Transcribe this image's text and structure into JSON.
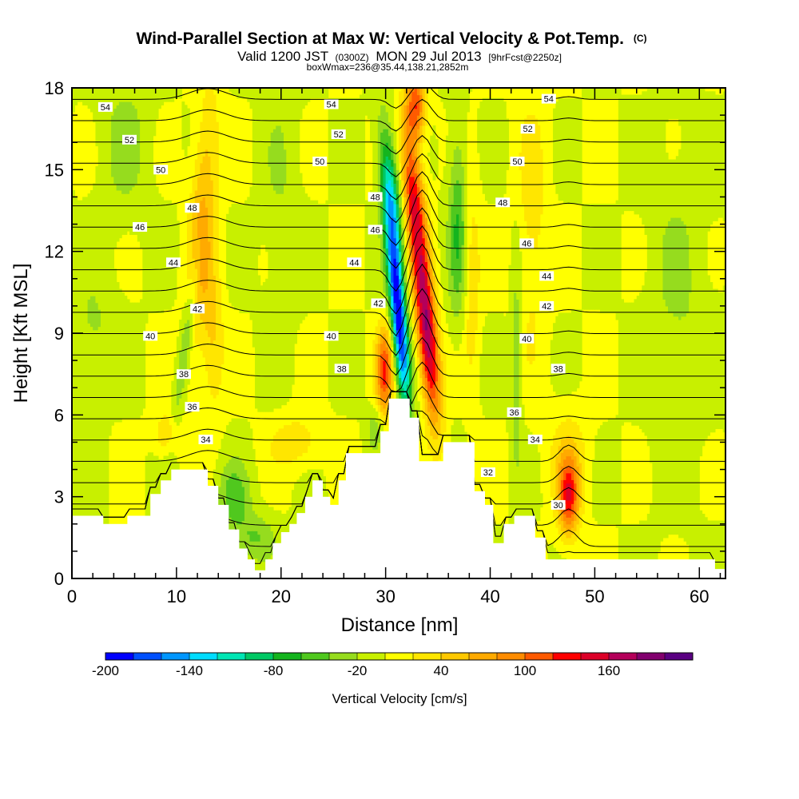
{
  "title": {
    "main": "Wind-Parallel Section at Max W: Vertical Velocity & Pot.Temp.",
    "mark": "(C)",
    "line2a": "Valid 1200 JST",
    "line2b": "(0300Z)",
    "line2c": "MON 29 Jul 2013",
    "line2d": "[9hrFcst@2250z]",
    "line3": "boxWmax=236@35.44,138.21,2852m"
  },
  "chart_data": {
    "type": "heatmap",
    "xlabel": "Distance [nm]",
    "ylabel": "Height [Kft MSL]",
    "xlim": [
      0,
      62.5
    ],
    "ylim": [
      0,
      18
    ],
    "x_ticks": [
      0,
      10,
      20,
      30,
      40,
      50,
      60
    ],
    "y_ticks": [
      0,
      3,
      6,
      9,
      12,
      15,
      18
    ],
    "colorbar": {
      "label": "Vertical Velocity [cm/s]",
      "tick_values": [
        -200,
        -140,
        -80,
        -20,
        40,
        100,
        160
      ],
      "levels": [
        -200,
        -180,
        -160,
        -140,
        -120,
        -100,
        -80,
        -60,
        -40,
        -20,
        0,
        20,
        40,
        60,
        80,
        100,
        120,
        140,
        160,
        180,
        200
      ],
      "colors": [
        "#0000ff",
        "#0050ff",
        "#0096ff",
        "#00dcff",
        "#00e6b4",
        "#00c864",
        "#14b41e",
        "#50c81e",
        "#96dc1e",
        "#c8f000",
        "#ffff00",
        "#ffe600",
        "#ffc800",
        "#ffaa00",
        "#ff8c00",
        "#ff5a00",
        "#ff0000",
        "#dc0028",
        "#b4005a",
        "#82006e",
        "#5a0082"
      ]
    },
    "terrain": [
      [
        0,
        2.3
      ],
      [
        3,
        2.3
      ],
      [
        3,
        2.0
      ],
      [
        5.3,
        2.0
      ],
      [
        5.3,
        2.3
      ],
      [
        7.5,
        2.3
      ],
      [
        7.5,
        2.6
      ],
      [
        7.5,
        3.1
      ],
      [
        8.5,
        3.1
      ],
      [
        8.5,
        3.6
      ],
      [
        9.5,
        3.6
      ],
      [
        9.5,
        4.0
      ],
      [
        13,
        4.0
      ],
      [
        13,
        3.4
      ],
      [
        14,
        3.4
      ],
      [
        14,
        2.7
      ],
      [
        15,
        2.7
      ],
      [
        15,
        1.8
      ],
      [
        16,
        1.8
      ],
      [
        16,
        1.1
      ],
      [
        16.8,
        1.1
      ],
      [
        16.8,
        0.7
      ],
      [
        17.5,
        0.7
      ],
      [
        17.5,
        0.3
      ],
      [
        18.5,
        0.3
      ],
      [
        18.5,
        0.7
      ],
      [
        19.2,
        0.7
      ],
      [
        19.2,
        1.3
      ],
      [
        20,
        1.3
      ],
      [
        20,
        1.7
      ],
      [
        20.8,
        1.7
      ],
      [
        20.8,
        2.0
      ],
      [
        21.5,
        2.0
      ],
      [
        21.5,
        2.4
      ],
      [
        22.3,
        2.4
      ],
      [
        22.3,
        3.0
      ],
      [
        23,
        3.0
      ],
      [
        23,
        3.6
      ],
      [
        24,
        3.6
      ],
      [
        24,
        3.0
      ],
      [
        24.7,
        3.0
      ],
      [
        24.7,
        2.7
      ],
      [
        25.5,
        2.7
      ],
      [
        25.5,
        3.6
      ],
      [
        26.2,
        3.6
      ],
      [
        26.2,
        4.6
      ],
      [
        29.5,
        4.6
      ],
      [
        29.5,
        5.4
      ],
      [
        30.3,
        5.4
      ],
      [
        30.3,
        6.6
      ],
      [
        32.3,
        6.6
      ],
      [
        32.3,
        5.9
      ],
      [
        33.2,
        5.9
      ],
      [
        33.2,
        4.3
      ],
      [
        35.5,
        4.3
      ],
      [
        35.5,
        5.0
      ],
      [
        38.5,
        5.0
      ],
      [
        38.5,
        3.2
      ],
      [
        39.5,
        3.2
      ],
      [
        39.5,
        2.7
      ],
      [
        40.3,
        2.7
      ],
      [
        40.3,
        1.3
      ],
      [
        41.3,
        1.3
      ],
      [
        41.3,
        2.0
      ],
      [
        42.3,
        2.0
      ],
      [
        42.3,
        2.3
      ],
      [
        44.3,
        2.3
      ],
      [
        44.3,
        1.5
      ],
      [
        45.3,
        1.5
      ],
      [
        45.3,
        0.7
      ],
      [
        56.5,
        0.7
      ],
      [
        61.5,
        0.7
      ],
      [
        61.5,
        0.35
      ],
      [
        62.5,
        0.35
      ]
    ],
    "contour_labels": [
      {
        "theta": 54,
        "x": 3.2,
        "z": 17.3
      },
      {
        "theta": 52,
        "x": 5.5,
        "z": 16.1
      },
      {
        "theta": 50,
        "x": 8.5,
        "z": 15.0
      },
      {
        "theta": 48,
        "x": 11.5,
        "z": 13.6
      },
      {
        "theta": 46,
        "x": 6.5,
        "z": 12.9
      },
      {
        "theta": 44,
        "x": 9.7,
        "z": 11.6
      },
      {
        "theta": 42,
        "x": 12,
        "z": 9.9
      },
      {
        "theta": 40,
        "x": 7.5,
        "z": 8.9
      },
      {
        "theta": 38,
        "x": 10.7,
        "z": 7.5
      },
      {
        "theta": 36,
        "x": 11.5,
        "z": 6.3
      },
      {
        "theta": 34,
        "x": 12.8,
        "z": 5.1
      },
      {
        "theta": 54,
        "x": 24.8,
        "z": 17.4
      },
      {
        "theta": 52,
        "x": 25.5,
        "z": 16.3
      },
      {
        "theta": 50,
        "x": 23.7,
        "z": 15.3
      },
      {
        "theta": 48,
        "x": 29,
        "z": 14.0
      },
      {
        "theta": 46,
        "x": 29,
        "z": 12.8
      },
      {
        "theta": 44,
        "x": 27,
        "z": 11.6
      },
      {
        "theta": 42,
        "x": 29.3,
        "z": 10.1
      },
      {
        "theta": 40,
        "x": 24.8,
        "z": 8.9
      },
      {
        "theta": 38,
        "x": 25.8,
        "z": 7.7
      },
      {
        "theta": 54,
        "x": 45.6,
        "z": 17.6
      },
      {
        "theta": 52,
        "x": 43.6,
        "z": 16.5
      },
      {
        "theta": 50,
        "x": 42.6,
        "z": 15.3
      },
      {
        "theta": 48,
        "x": 41.2,
        "z": 13.8
      },
      {
        "theta": 46,
        "x": 43.5,
        "z": 12.3
      },
      {
        "theta": 44,
        "x": 45.4,
        "z": 11.1
      },
      {
        "theta": 42,
        "x": 45.4,
        "z": 10.0
      },
      {
        "theta": 40,
        "x": 43.5,
        "z": 8.8
      },
      {
        "theta": 38,
        "x": 46.5,
        "z": 7.7
      },
      {
        "theta": 36,
        "x": 42.3,
        "z": 6.1
      },
      {
        "theta": 34,
        "x": 44.3,
        "z": 5.1
      },
      {
        "theta": 32,
        "x": 39.8,
        "z": 3.9
      },
      {
        "theta": 30,
        "x": 46.5,
        "z": 2.7
      }
    ]
  }
}
